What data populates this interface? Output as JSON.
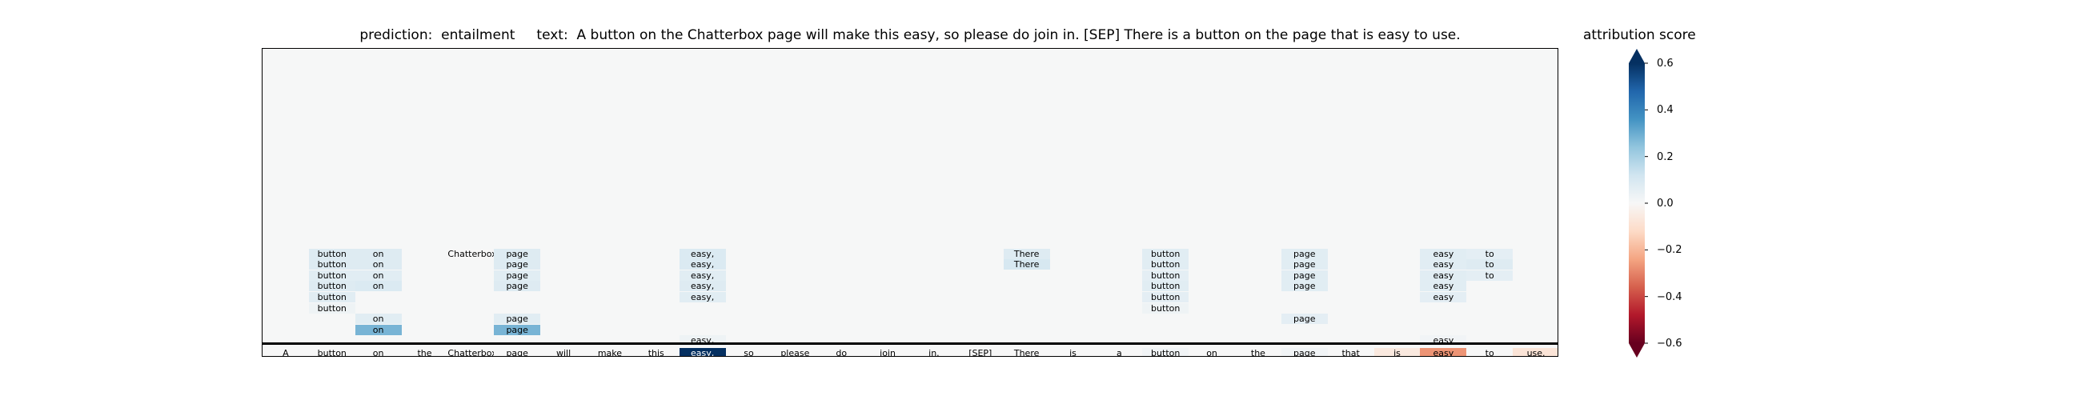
{
  "title": {
    "prediction_label": "prediction:",
    "prediction": "entailment",
    "text_label": "text:",
    "text": "A button on the Chatterbox page will make this easy, so please do join in. [SEP] There is a button on the page that is easy to use."
  },
  "colorbar": {
    "title": "attribution score",
    "range": [
      -0.6,
      0.6
    ],
    "extend": "both",
    "ticks": [
      "0.6",
      "0.4",
      "0.2",
      "0.0",
      "−0.2",
      "−0.4",
      "−0.6"
    ],
    "tick_values": [
      0.6,
      0.4,
      0.2,
      0.0,
      -0.2,
      -0.4,
      -0.6
    ],
    "colormap": "RdBu",
    "colors": {
      "neg": "#67001f",
      "mid": "#f7f7f7",
      "pos": "#053061"
    }
  },
  "chart_data": {
    "type": "heatmap",
    "title": "prediction:  entailment     text:  A button on the Chatterbox page will make this easy, so please do join in. [SEP] There is a button on the page that is easy to use.",
    "tokens": [
      "A",
      "button",
      "on",
      "the",
      "Chatterbox",
      "page",
      "will",
      "make",
      "this",
      "easy,",
      "so",
      "please",
      "do",
      "join",
      "in.",
      "[SEP]",
      "There",
      "is",
      "a",
      "button",
      "on",
      "the",
      "page",
      "that",
      "is",
      "easy",
      "to",
      "use."
    ],
    "token_scores": [
      0.0,
      0.0,
      0.0,
      0.0,
      0.0,
      0.0,
      0.0,
      0.0,
      0.0,
      0.62,
      0.0,
      0.0,
      0.0,
      0.0,
      0.0,
      0.0,
      0.0,
      0.0,
      0.0,
      0.02,
      0.0,
      0.0,
      0.02,
      0.0,
      -0.06,
      -0.27,
      0.0,
      -0.08
    ],
    "rows": [
      [
        {
          "token": "button",
          "col": 1,
          "score": 0.08
        },
        {
          "token": "on",
          "col": 2,
          "score": 0.08
        },
        {
          "token": "Chatterbox",
          "col": 4,
          "score": 0.0
        },
        {
          "token": "page",
          "col": 5,
          "score": 0.08
        },
        {
          "token": "easy,",
          "col": 9,
          "score": 0.09
        },
        {
          "token": "There",
          "col": 16,
          "score": 0.08
        },
        {
          "token": "button",
          "col": 19,
          "score": 0.07
        },
        {
          "token": "page",
          "col": 22,
          "score": 0.07
        },
        {
          "token": "easy",
          "col": 25,
          "score": 0.07
        },
        {
          "token": "to",
          "col": 26,
          "score": 0.06
        }
      ],
      [
        {
          "token": "button",
          "col": 1,
          "score": 0.08
        },
        {
          "token": "on",
          "col": 2,
          "score": 0.08
        },
        {
          "token": "page",
          "col": 5,
          "score": 0.08
        },
        {
          "token": "easy,",
          "col": 9,
          "score": 0.09
        },
        {
          "token": "There",
          "col": 16,
          "score": 0.1
        },
        {
          "token": "button",
          "col": 19,
          "score": 0.07
        },
        {
          "token": "page",
          "col": 22,
          "score": 0.07
        },
        {
          "token": "easy",
          "col": 25,
          "score": 0.07
        },
        {
          "token": "to",
          "col": 26,
          "score": 0.08
        }
      ],
      [
        {
          "token": "button",
          "col": 1,
          "score": 0.07
        },
        {
          "token": "on",
          "col": 2,
          "score": 0.07
        },
        {
          "token": "page",
          "col": 5,
          "score": 0.07
        },
        {
          "token": "easy,",
          "col": 9,
          "score": 0.07
        },
        {
          "token": "button",
          "col": 19,
          "score": 0.06
        },
        {
          "token": "page",
          "col": 22,
          "score": 0.07
        },
        {
          "token": "easy",
          "col": 25,
          "score": 0.07
        },
        {
          "token": "to",
          "col": 26,
          "score": 0.06
        }
      ],
      [
        {
          "token": "button",
          "col": 1,
          "score": 0.08
        },
        {
          "token": "on",
          "col": 2,
          "score": 0.09
        },
        {
          "token": "page",
          "col": 5,
          "score": 0.08
        },
        {
          "token": "easy,",
          "col": 9,
          "score": 0.08
        },
        {
          "token": "button",
          "col": 19,
          "score": 0.07
        },
        {
          "token": "page",
          "col": 22,
          "score": 0.07
        },
        {
          "token": "easy",
          "col": 25,
          "score": 0.07
        }
      ],
      [
        {
          "token": "button",
          "col": 1,
          "score": 0.07
        },
        {
          "token": "easy,",
          "col": 9,
          "score": 0.07
        },
        {
          "token": "button",
          "col": 19,
          "score": 0.06
        },
        {
          "token": "easy",
          "col": 25,
          "score": 0.06
        }
      ],
      [
        {
          "token": "button",
          "col": 1,
          "score": 0.03
        },
        {
          "token": "button",
          "col": 19,
          "score": 0.03
        }
      ],
      [
        {
          "token": "on",
          "col": 2,
          "score": 0.07
        },
        {
          "token": "page",
          "col": 5,
          "score": 0.07
        },
        {
          "token": "page",
          "col": 22,
          "score": 0.06
        }
      ],
      [
        {
          "token": "on",
          "col": 2,
          "score": 0.28
        },
        {
          "token": "page",
          "col": 5,
          "score": 0.28
        }
      ],
      [
        {
          "token": "easy,",
          "col": 9,
          "score": 0.03
        },
        {
          "token": "easy",
          "col": 25,
          "score": 0.02
        }
      ]
    ]
  }
}
